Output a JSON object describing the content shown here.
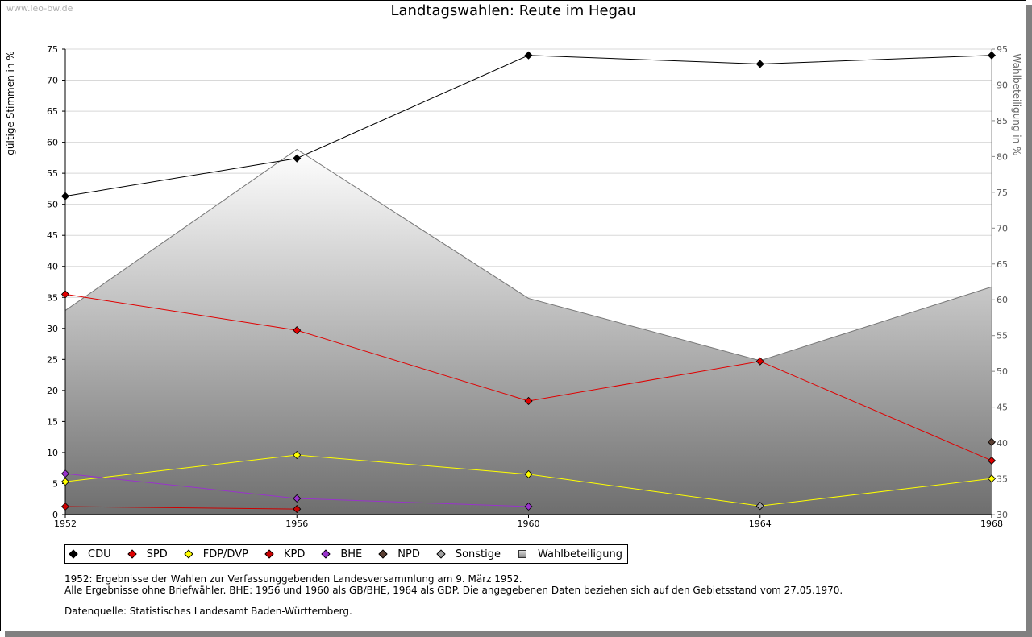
{
  "watermark": "www.leo-bw.de",
  "notes": {
    "line1": "1952: Ergebnisse der Wahlen zur Verfassunggebenden Landesversammlung am 9. März 1952.",
    "line2": "Alle Ergebnisse ohne Briefwähler. BHE: 1956 und 1960 als GB/BHE, 1964 als GDP. Die angegebenen Daten beziehen sich auf den Gebietsstand vom 27.05.1970.",
    "source": "Datenquelle: Statistisches Landesamt Baden-Württemberg."
  },
  "chart_data": {
    "type": "line",
    "title": "Landtagswahlen: Reute im Hegau",
    "xlabel": "",
    "ylabel": "gültige Stimmen in %",
    "ylabel_right": "Wahlbeteiligung in %",
    "categories": [
      "1952",
      "1956",
      "1960",
      "1964",
      "1968"
    ],
    "ylim": [
      0,
      75
    ],
    "yticks": [
      0,
      5,
      10,
      15,
      20,
      25,
      30,
      35,
      40,
      45,
      50,
      55,
      60,
      65,
      70,
      75
    ],
    "ylim_right": [
      30,
      95
    ],
    "yticks_right": [
      30,
      35,
      40,
      45,
      50,
      55,
      60,
      65,
      70,
      75,
      80,
      85,
      90,
      95
    ],
    "grid": true,
    "legend_position": "bottom",
    "series": [
      {
        "name": "CDU",
        "color": "#000000",
        "values": [
          51.3,
          57.4,
          74.0,
          72.6,
          74.0
        ]
      },
      {
        "name": "SPD",
        "color": "#e00000",
        "values": [
          35.5,
          29.7,
          18.3,
          24.7,
          8.7
        ]
      },
      {
        "name": "FDP/DVP",
        "color": "#ffff00",
        "values": [
          5.3,
          9.6,
          6.5,
          1.4,
          5.8
        ]
      },
      {
        "name": "KPD",
        "color": "#cc0000",
        "values": [
          1.3,
          0.9,
          null,
          null,
          null
        ]
      },
      {
        "name": "BHE",
        "color": "#9933cc",
        "values": [
          6.6,
          2.6,
          1.3,
          null,
          null
        ]
      },
      {
        "name": "NPD",
        "color": "#5c4033",
        "values": [
          null,
          null,
          null,
          null,
          11.7
        ]
      },
      {
        "name": "Sonstige",
        "color": "#a0a0a0",
        "values": [
          null,
          null,
          null,
          1.4,
          null
        ]
      }
    ],
    "area_series": {
      "name": "Wahlbeteiligung",
      "color": "#808080",
      "values": [
        58.5,
        81.0,
        60.2,
        51.5,
        61.8
      ]
    }
  }
}
